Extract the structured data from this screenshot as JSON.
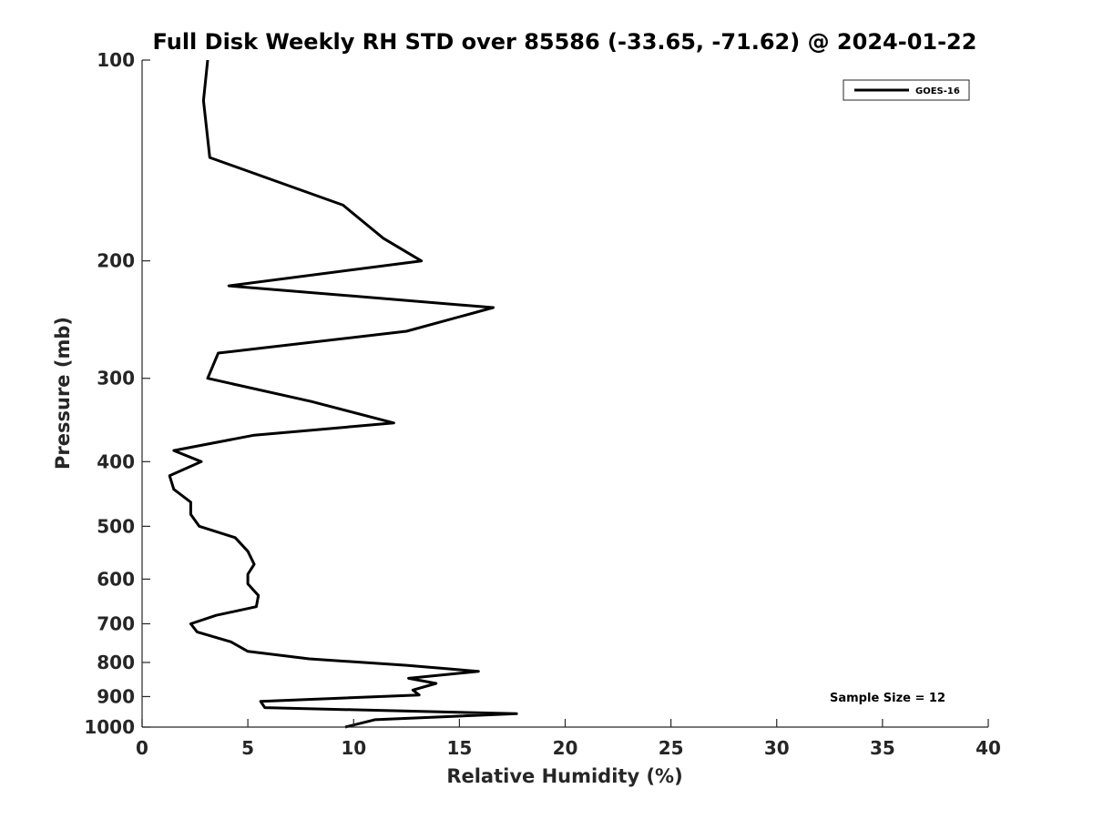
{
  "chart_data": {
    "type": "line",
    "title": "Full Disk Weekly RH STD over 85586 (-33.65, -71.62) @ 2024-01-22",
    "xlabel": "Relative Humidity (%)",
    "ylabel": "Pressure (mb)",
    "xlim": [
      0,
      40
    ],
    "ylim": [
      100,
      1000
    ],
    "yscale": "log",
    "y_reversed": true,
    "xticks": [
      0,
      5,
      10,
      15,
      20,
      25,
      30,
      35,
      40
    ],
    "yticks": [
      100,
      200,
      300,
      400,
      500,
      600,
      700,
      800,
      900,
      1000
    ],
    "grid": false,
    "legend": {
      "placement": "top-right",
      "entries": [
        "GOES-16"
      ]
    },
    "annotation": "Sample Size = 12",
    "series": [
      {
        "name": "GOES-16",
        "color": "#000000",
        "x": [
          3.1,
          2.9,
          3.2,
          9.5,
          11.4,
          13.2,
          4.1,
          16.6,
          12.5,
          3.6,
          3.1,
          8.0,
          11.9,
          5.3,
          1.5,
          2.8,
          1.3,
          1.5,
          2.3,
          2.3,
          2.7,
          4.4,
          5.0,
          5.3,
          5.0,
          5.0,
          5.5,
          5.4,
          3.5,
          2.3,
          2.6,
          4.2,
          5.0,
          7.9,
          12.5,
          15.9,
          12.6,
          13.9,
          12.8,
          13.1,
          5.6,
          5.8,
          17.7,
          11.0,
          9.6
        ]
      }
    ],
    "pressure": [
      100,
      115,
      140,
      165,
      185,
      200,
      218,
      235,
      255,
      275,
      300,
      325,
      350,
      365,
      385,
      400,
      420,
      440,
      460,
      480,
      500,
      520,
      545,
      570,
      590,
      610,
      635,
      660,
      680,
      700,
      720,
      745,
      770,
      790,
      808,
      825,
      845,
      860,
      880,
      895,
      915,
      935,
      955,
      975,
      1000
    ]
  }
}
